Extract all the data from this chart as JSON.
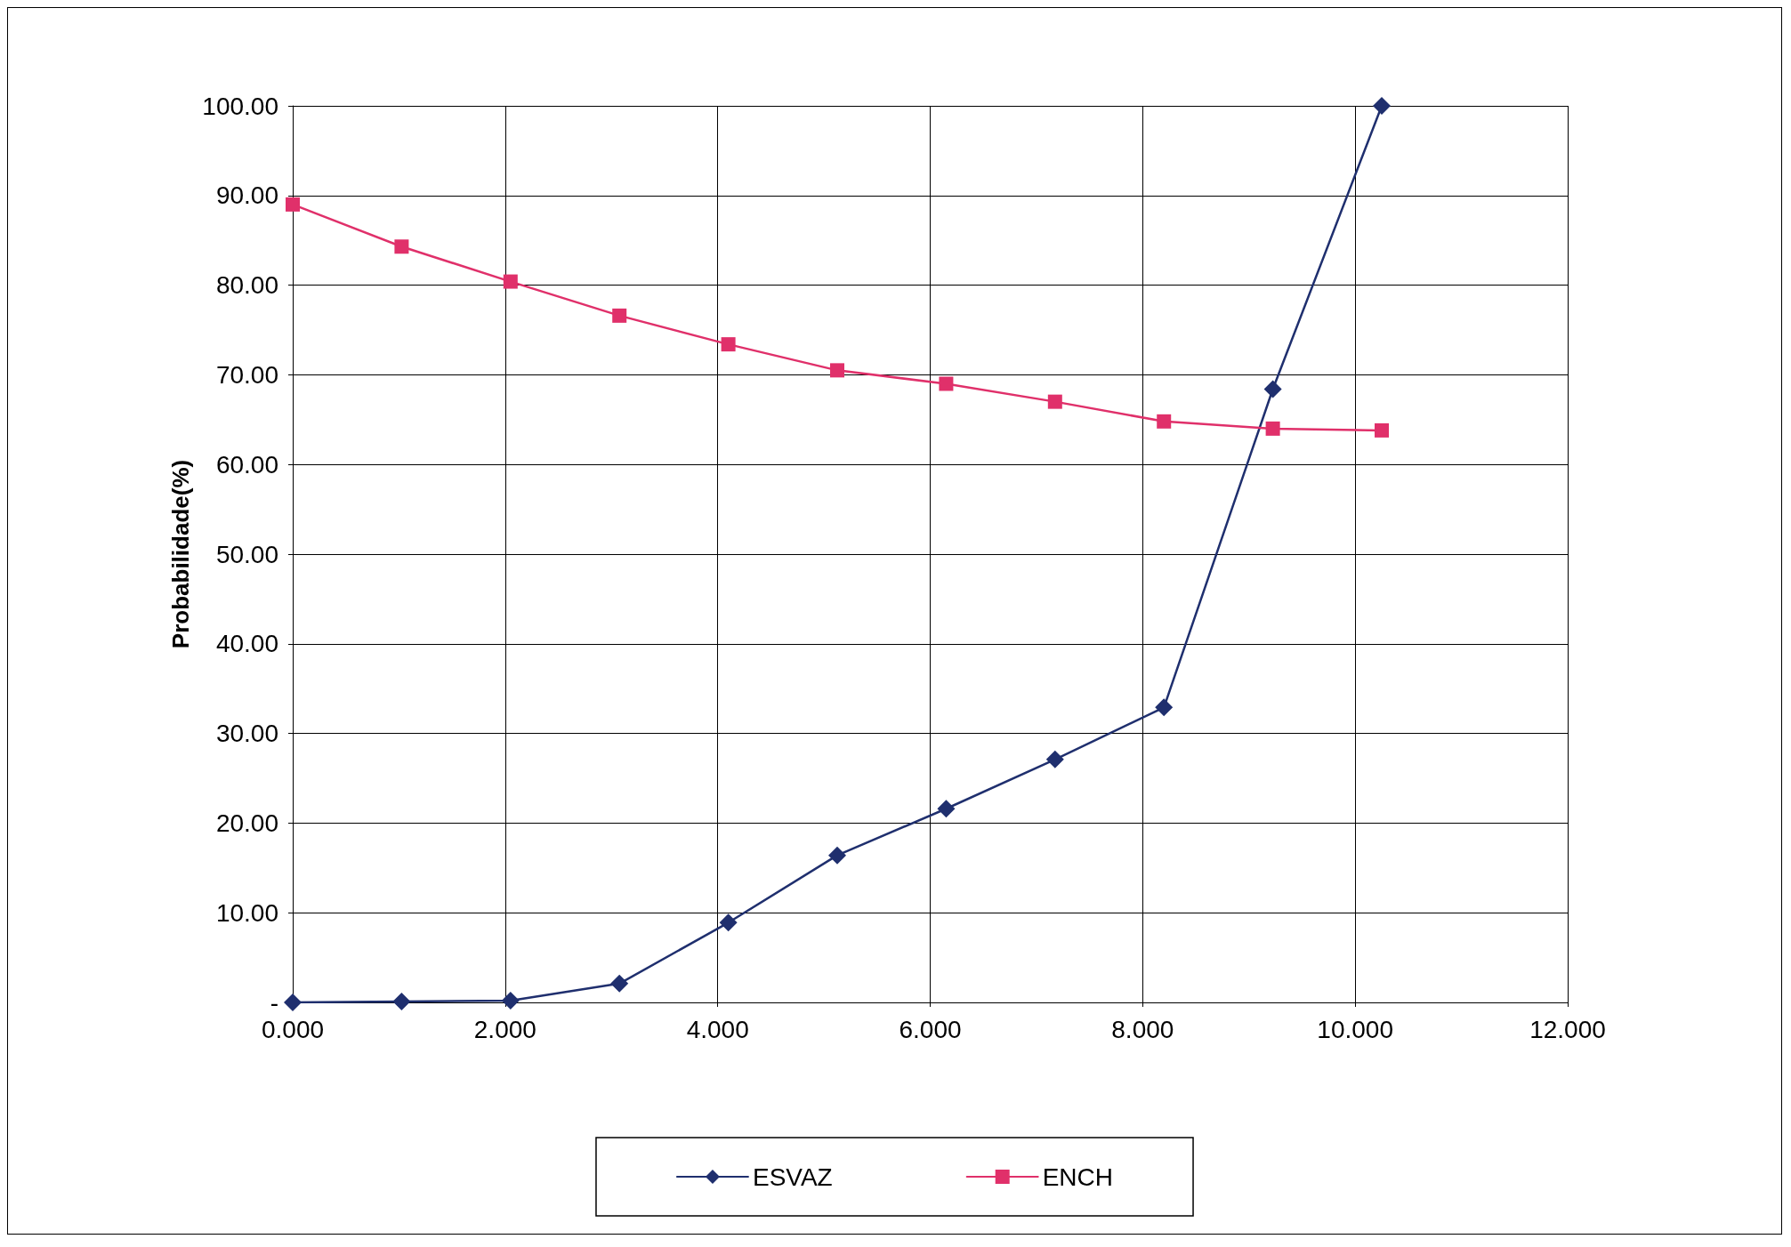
{
  "chart_data": {
    "type": "line",
    "ylabel": "Probabilidade(%)",
    "x": [
      0,
      1.025,
      2.05,
      3.075,
      4.1,
      5.125,
      6.15,
      7.175,
      8.2,
      9.225,
      10.25
    ],
    "series": [
      {
        "name": "ESVAZ",
        "color": "#1f2f6e",
        "marker": "diamond",
        "values": [
          0,
          0.1,
          0.2,
          2.1,
          8.9,
          16.4,
          21.6,
          27.1,
          32.9,
          68.4,
          100
        ]
      },
      {
        "name": "ENCH",
        "color": "#e0306a",
        "marker": "square",
        "values": [
          89,
          84.3,
          80.4,
          76.6,
          73.4,
          70.5,
          69,
          67,
          64.8,
          64,
          63.8
        ]
      }
    ],
    "xlim": [
      0,
      12
    ],
    "xticks": [
      {
        "value": 0,
        "label": "0.000"
      },
      {
        "value": 2,
        "label": "2.000"
      },
      {
        "value": 4,
        "label": "4.000"
      },
      {
        "value": 6,
        "label": "6.000"
      },
      {
        "value": 8,
        "label": "8.000"
      },
      {
        "value": 10,
        "label": "10.000"
      },
      {
        "value": 12,
        "label": "12.000"
      }
    ],
    "ylim": [
      0,
      100
    ],
    "yticks": [
      {
        "value": 0,
        "label": "-"
      },
      {
        "value": 10,
        "label": "10.00"
      },
      {
        "value": 20,
        "label": "20.00"
      },
      {
        "value": 30,
        "label": "30.00"
      },
      {
        "value": 40,
        "label": "40.00"
      },
      {
        "value": 50,
        "label": "50.00"
      },
      {
        "value": 60,
        "label": "60.00"
      },
      {
        "value": 70,
        "label": "70.00"
      },
      {
        "value": 80,
        "label": "80.00"
      },
      {
        "value": 90,
        "label": "90.00"
      },
      {
        "value": 100,
        "label": "100.00"
      }
    ],
    "grid": true,
    "legend": "bottom",
    "line_style": "solid"
  }
}
